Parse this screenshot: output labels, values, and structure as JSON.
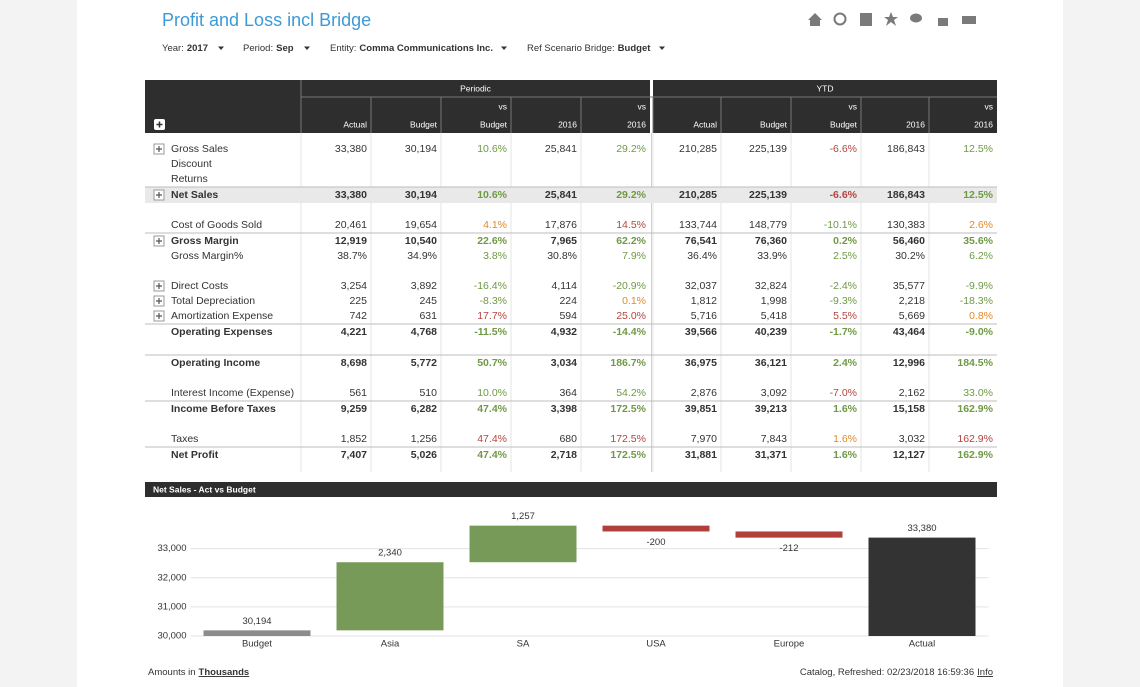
{
  "header": {
    "title": "Profit and Loss incl Bridge",
    "filters": [
      {
        "label": "Year:",
        "value": "2017"
      },
      {
        "label": "Period:",
        "value": "Sep"
      },
      {
        "label": "Entity:",
        "value": "Comma Communications Inc."
      },
      {
        "label": "Ref Scenario Bridge:",
        "value": "Budget"
      }
    ]
  },
  "table": {
    "groups": [
      "Periodic",
      "YTD"
    ],
    "columns": [
      {
        "label": "Actual"
      },
      {
        "label": "Budget"
      },
      {
        "prefix": "vs",
        "label": "Budget"
      },
      {
        "label": "2016"
      },
      {
        "prefix": "vs",
        "label": "2016"
      }
    ],
    "tone_colors": {
      "good": "#6f9a45",
      "bad": "#b5443d",
      "warn": "#e0892c"
    },
    "rows": [
      {
        "label": "Gross Sales",
        "expandable": true,
        "cells": [
          "33,380",
          "30,194",
          {
            "text": "10.6%",
            "tone": "good"
          },
          "25,841",
          {
            "text": "29.2%",
            "tone": "good"
          },
          "210,285",
          "225,139",
          {
            "text": "-6.6%",
            "tone": "bad"
          },
          "186,843",
          {
            "text": "12.5%",
            "tone": "good"
          }
        ]
      },
      {
        "label": "Discount"
      },
      {
        "label": "Returns"
      },
      {
        "label": "Net Sales",
        "bold": true,
        "highlight": true,
        "expandable": true,
        "cells": [
          "33,380",
          "30,194",
          {
            "text": "10.6%",
            "tone": "good"
          },
          "25,841",
          {
            "text": "29.2%",
            "tone": "good"
          },
          "210,285",
          "225,139",
          {
            "text": "-6.6%",
            "tone": "bad"
          },
          "186,843",
          {
            "text": "12.5%",
            "tone": "good"
          }
        ]
      },
      {
        "label": "Cost of Goods Sold",
        "cells": [
          "20,461",
          "19,654",
          {
            "text": "4.1%",
            "tone": "warn"
          },
          "17,876",
          {
            "text": "14.5%",
            "tone": "bad"
          },
          "133,744",
          "148,779",
          {
            "text": "-10.1%",
            "tone": "good"
          },
          "130,383",
          {
            "text": "2.6%",
            "tone": "warn"
          }
        ]
      },
      {
        "label": "Gross Margin",
        "bold": true,
        "expandable": true,
        "cells": [
          "12,919",
          "10,540",
          {
            "text": "22.6%",
            "tone": "good"
          },
          "7,965",
          {
            "text": "62.2%",
            "tone": "good"
          },
          "76,541",
          "76,360",
          {
            "text": "0.2%",
            "tone": "good"
          },
          "56,460",
          {
            "text": "35.6%",
            "tone": "good"
          }
        ]
      },
      {
        "label": "Gross Margin%",
        "cells": [
          "38.7%",
          "34.9%",
          {
            "text": "3.8%",
            "tone": "good"
          },
          "30.8%",
          {
            "text": "7.9%",
            "tone": "good"
          },
          "36.4%",
          "33.9%",
          {
            "text": "2.5%",
            "tone": "good"
          },
          "30.2%",
          {
            "text": "6.2%",
            "tone": "good"
          }
        ]
      },
      {
        "label": "Direct Costs",
        "expandable": true,
        "cells": [
          "3,254",
          "3,892",
          {
            "text": "-16.4%",
            "tone": "good"
          },
          "4,114",
          {
            "text": "-20.9%",
            "tone": "good"
          },
          "32,037",
          "32,824",
          {
            "text": "-2.4%",
            "tone": "good"
          },
          "35,577",
          {
            "text": "-9.9%",
            "tone": "good"
          }
        ]
      },
      {
        "label": "Total Depreciation",
        "expandable": true,
        "cells": [
          "225",
          "245",
          {
            "text": "-8.3%",
            "tone": "good"
          },
          "224",
          {
            "text": "0.1%",
            "tone": "warn"
          },
          "1,812",
          "1,998",
          {
            "text": "-9.3%",
            "tone": "good"
          },
          "2,218",
          {
            "text": "-18.3%",
            "tone": "good"
          }
        ]
      },
      {
        "label": "Amortization Expense",
        "expandable": true,
        "cells": [
          "742",
          "631",
          {
            "text": "17.7%",
            "tone": "bad"
          },
          "594",
          {
            "text": "25.0%",
            "tone": "bad"
          },
          "5,716",
          "5,418",
          {
            "text": "5.5%",
            "tone": "bad"
          },
          "5,669",
          {
            "text": "0.8%",
            "tone": "warn"
          }
        ]
      },
      {
        "label": "Operating Expenses",
        "bold": true,
        "cells": [
          "4,221",
          "4,768",
          {
            "text": "-11.5%",
            "tone": "good"
          },
          "4,932",
          {
            "text": "-14.4%",
            "tone": "good"
          },
          "39,566",
          "40,239",
          {
            "text": "-1.7%",
            "tone": "good"
          },
          "43,464",
          {
            "text": "-9.0%",
            "tone": "good"
          }
        ]
      },
      {
        "label": "Operating Income",
        "bold": true,
        "cells": [
          "8,698",
          "5,772",
          {
            "text": "50.7%",
            "tone": "good"
          },
          "3,034",
          {
            "text": "186.7%",
            "tone": "good"
          },
          "36,975",
          "36,121",
          {
            "text": "2.4%",
            "tone": "good"
          },
          "12,996",
          {
            "text": "184.5%",
            "tone": "good"
          }
        ]
      },
      {
        "label": "Interest Income (Expense)",
        "cells": [
          "561",
          "510",
          {
            "text": "10.0%",
            "tone": "good"
          },
          "364",
          {
            "text": "54.2%",
            "tone": "good"
          },
          "2,876",
          "3,092",
          {
            "text": "-7.0%",
            "tone": "bad"
          },
          "2,162",
          {
            "text": "33.0%",
            "tone": "good"
          }
        ]
      },
      {
        "label": "Income Before Taxes",
        "bold": true,
        "cells": [
          "9,259",
          "6,282",
          {
            "text": "47.4%",
            "tone": "good"
          },
          "3,398",
          {
            "text": "172.5%",
            "tone": "good"
          },
          "39,851",
          "39,213",
          {
            "text": "1.6%",
            "tone": "good"
          },
          "15,158",
          {
            "text": "162.9%",
            "tone": "good"
          }
        ]
      },
      {
        "label": "Taxes",
        "cells": [
          "1,852",
          "1,256",
          {
            "text": "47.4%",
            "tone": "bad"
          },
          "680",
          {
            "text": "172.5%",
            "tone": "bad"
          },
          "7,970",
          "7,843",
          {
            "text": "1.6%",
            "tone": "warn"
          },
          "3,032",
          {
            "text": "162.9%",
            "tone": "bad"
          }
        ]
      },
      {
        "label": "Net Profit",
        "bold": true,
        "cells": [
          "7,407",
          "5,026",
          {
            "text": "47.4%",
            "tone": "good"
          },
          "2,718",
          {
            "text": "172.5%",
            "tone": "good"
          },
          "31,881",
          "31,371",
          {
            "text": "1.6%",
            "tone": "good"
          },
          "12,127",
          {
            "text": "162.9%",
            "tone": "good"
          }
        ]
      }
    ]
  },
  "chart_data": {
    "type": "waterfall",
    "title": "Net Sales - Act vs Budget",
    "categories": [
      "Budget",
      "Asia",
      "SA",
      "USA",
      "Europe",
      "Actual"
    ],
    "values": [
      30194,
      2340,
      1257,
      -200,
      -212,
      33380
    ],
    "value_labels": [
      "30,194",
      "2,340",
      "1,257",
      "-200",
      "-212",
      "33,380"
    ],
    "totals": [
      true,
      false,
      false,
      false,
      false,
      true
    ],
    "colors": [
      "#8c8c8c",
      "#789a58",
      "#789a58",
      "#b13f3a",
      "#b13f3a",
      "#333333"
    ],
    "ylim": [
      30000,
      34500
    ],
    "yticks": [
      {
        "value": 30000,
        "label": "30,000"
      },
      {
        "value": 31000,
        "label": "31,000"
      },
      {
        "value": 32000,
        "label": "32,000"
      },
      {
        "value": 33000,
        "label": "33,000"
      }
    ],
    "grid": true
  },
  "footer": {
    "note": "Amounts in",
    "unit": "Thousands",
    "status": "Catalog, Refreshed: 02/23/2018 16:59:36",
    "link": "Info"
  }
}
